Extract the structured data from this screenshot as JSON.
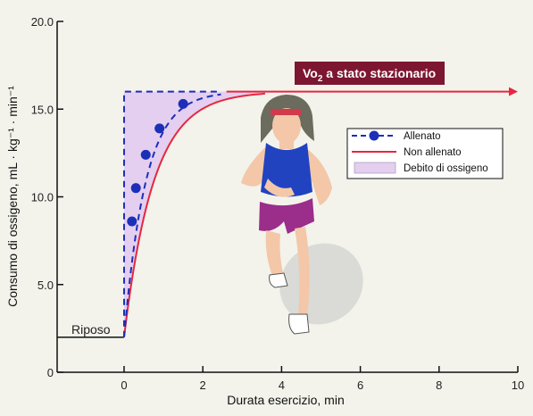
{
  "chart_data": {
    "type": "line",
    "xlabel": "Durata esercizio, min",
    "ylabel": "Consumo di ossigeno, mL · kg⁻¹ · min⁻¹",
    "xlim": [
      -1.7,
      10
    ],
    "ylim": [
      0,
      20
    ],
    "x_ticks": [
      "0",
      "2",
      "4",
      "6",
      "8",
      "10"
    ],
    "y_ticks": [
      "0",
      "5.0",
      "10.0",
      "15.0",
      "20.0"
    ],
    "grid": false,
    "legend_position": "right",
    "annotations": {
      "rest": "Riposo",
      "steady_state_prefix": "Vo",
      "steady_state_sub": "2",
      "steady_state_suffix": " a stato stazionario"
    },
    "resting_level": 2.0,
    "steady_state_level": 16.0,
    "series": [
      {
        "name": "Allenato",
        "style": "dashed line with markers",
        "color": "#1c2fb8",
        "points": [
          [
            0.2,
            8.6
          ],
          [
            0.3,
            10.5
          ],
          [
            0.55,
            12.4
          ],
          [
            0.9,
            13.9
          ],
          [
            1.5,
            15.3
          ]
        ]
      },
      {
        "name": "Non allenato",
        "style": "solid line",
        "color": "#e8263f"
      },
      {
        "name": "Debito di ossigeno",
        "style": "shaded area",
        "color": "#e4cff0"
      }
    ]
  },
  "colors": {
    "trained": "#1c2fb8",
    "untrained": "#e8263f",
    "debt_fill": "#e4cff0",
    "banner_bg": "#7d1630",
    "banner_text": "#ffffff",
    "background": "#f3f3ec"
  },
  "illustration": "runner-woman-icon"
}
